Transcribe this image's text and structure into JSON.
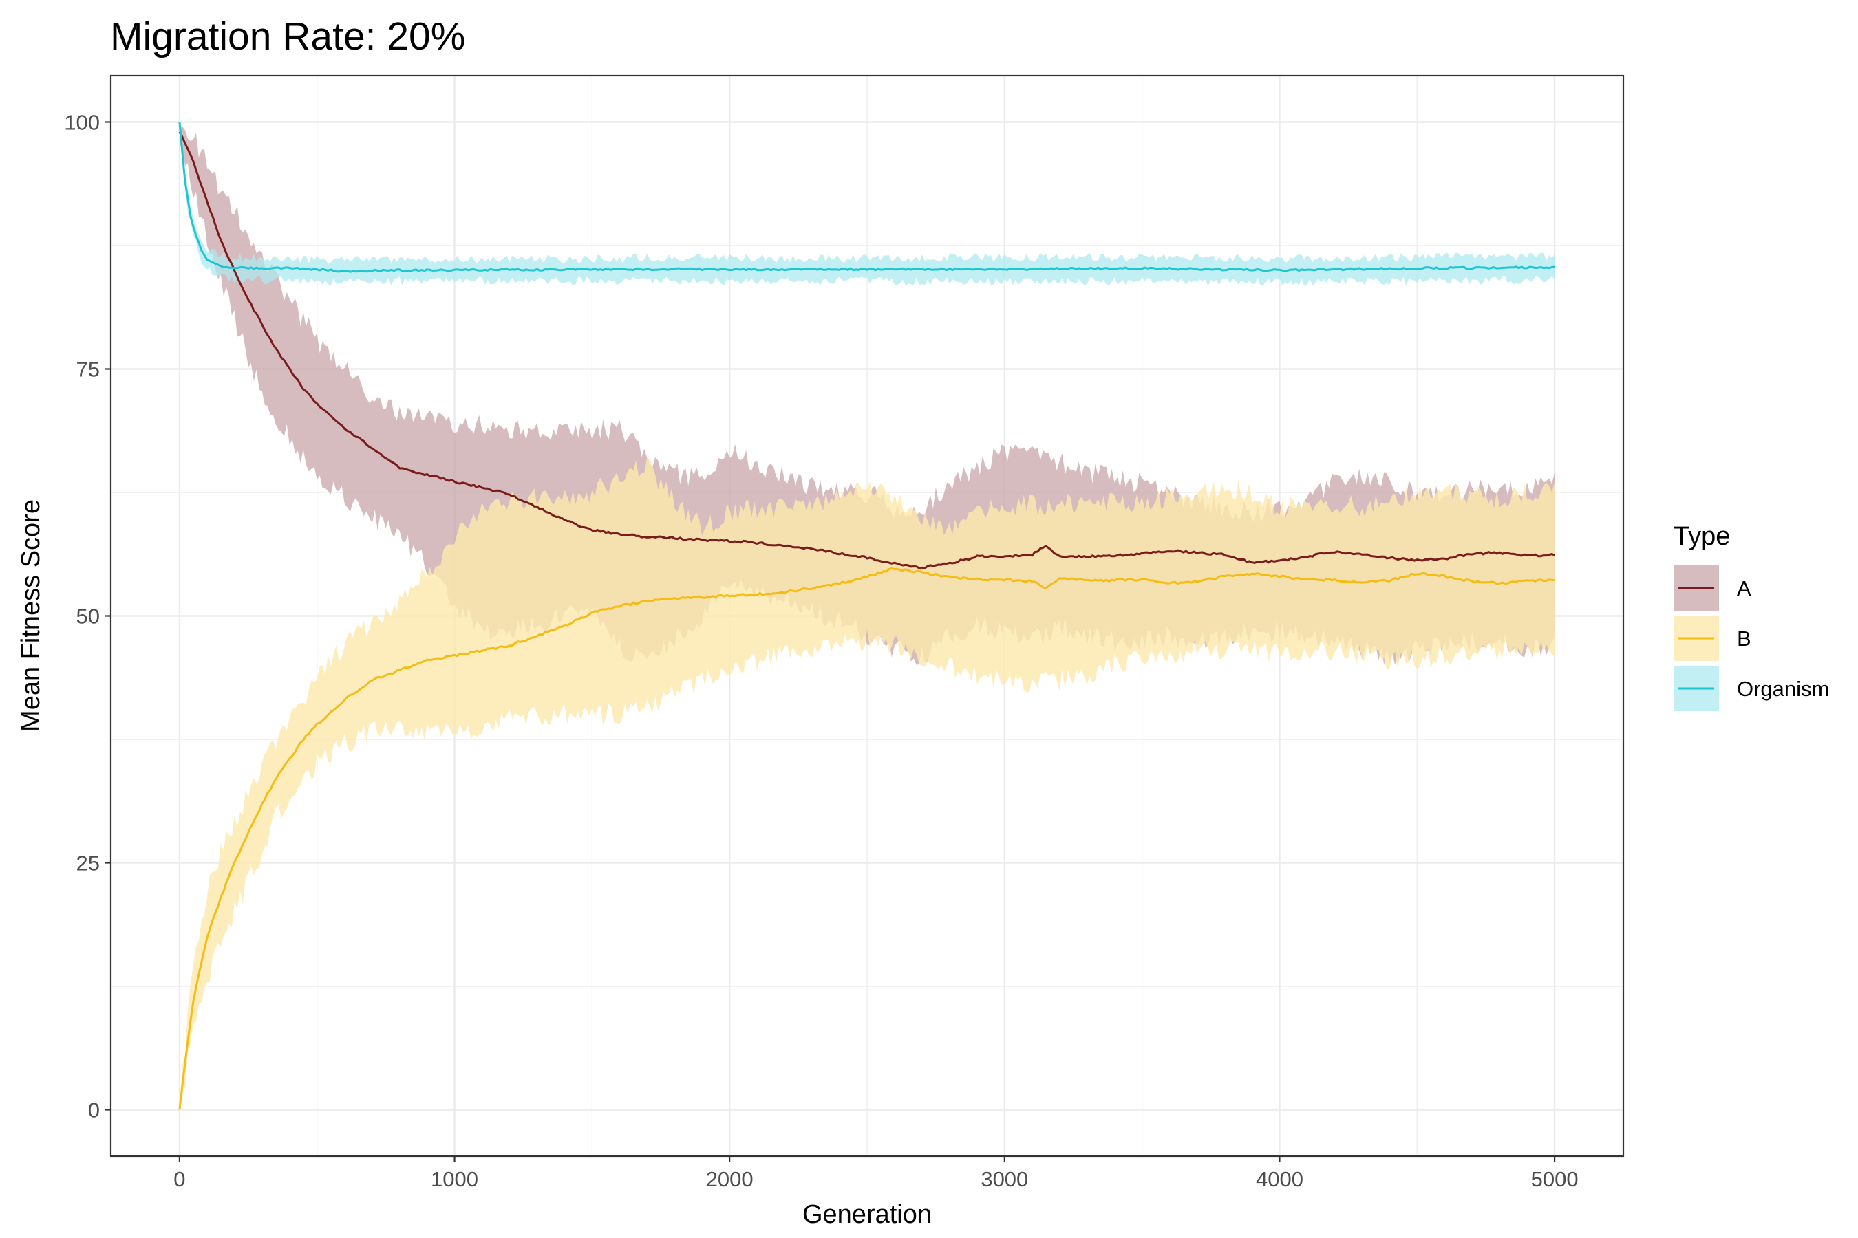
{
  "chart_data": {
    "type": "line",
    "title": "Migration Rate: 20%",
    "xlabel": "Generation",
    "ylabel": "Mean Fitness Score",
    "xlim": [
      -250,
      5250
    ],
    "ylim": [
      -4.7,
      104.7
    ],
    "x_ticks": [
      0,
      1000,
      2000,
      3000,
      4000,
      5000
    ],
    "y_ticks": [
      0,
      25,
      50,
      75,
      100
    ],
    "grid": true,
    "legend": {
      "title": "Type",
      "position": "right"
    },
    "series": [
      {
        "name": "A",
        "color": "#7b1c1c",
        "fill": "#c8a6aa",
        "x": [
          0,
          50,
          100,
          150,
          200,
          250,
          300,
          350,
          400,
          450,
          500,
          600,
          700,
          800,
          900,
          1000,
          1100,
          1200,
          1300,
          1400,
          1500,
          1600,
          1700,
          1800,
          1900,
          2000,
          2100,
          2200,
          2300,
          2400,
          2500,
          2600,
          2700,
          2800,
          2900,
          3000,
          3100,
          3150,
          3200,
          3300,
          3400,
          3500,
          3600,
          3700,
          3800,
          3900,
          4000,
          4100,
          4200,
          4300,
          4400,
          4500,
          4600,
          4700,
          4800,
          4900,
          5000
        ],
        "mean": [
          99,
          96,
          92,
          88,
          85,
          82,
          79.5,
          77,
          75,
          73,
          71.5,
          69,
          67,
          65,
          64.3,
          63.6,
          63,
          62.3,
          61,
          59.7,
          58.7,
          58.3,
          58,
          57.9,
          57.7,
          57.6,
          57.4,
          57.1,
          56.8,
          56.3,
          55.9,
          55.3,
          54.9,
          55.3,
          56,
          56,
          56.2,
          57.1,
          56,
          56,
          56.1,
          56.3,
          56.6,
          56.4,
          56.2,
          55.4,
          55.6,
          56,
          56.5,
          56.2,
          55.9,
          55.6,
          55.8,
          56.3,
          56.4,
          56.1,
          56.2
        ],
        "upper": [
          100,
          98.5,
          96,
          93,
          91,
          89,
          86.5,
          84,
          82,
          80,
          78,
          75,
          72,
          70.5,
          70,
          69.5,
          69.5,
          69,
          68.5,
          69,
          68.7,
          69,
          66,
          64.5,
          64,
          66.5,
          65.5,
          64,
          63,
          62.5,
          62.5,
          61,
          60.5,
          63.5,
          65,
          66.5,
          67,
          66.5,
          65.5,
          64.5,
          64,
          63.5,
          62.5,
          61.5,
          61,
          60.5,
          61,
          62,
          63.5,
          64,
          63.5,
          62.5,
          62,
          63,
          63,
          62.5,
          64
        ],
        "lower": [
          98,
          93,
          88,
          84,
          80,
          76,
          73,
          70,
          68,
          66,
          64,
          62,
          60,
          58,
          55,
          51,
          48.5,
          48.5,
          49,
          50,
          51,
          47,
          45,
          47.5,
          50,
          53,
          52,
          52,
          50.5,
          49.5,
          48,
          46.5,
          46,
          48,
          49,
          48.5,
          47.5,
          48,
          49,
          48,
          47.5,
          47.5,
          48,
          47.5,
          48,
          48.5,
          48.5,
          48,
          47.5,
          46.5,
          46,
          46.5,
          47,
          47.5,
          47.5,
          46.5,
          47
        ]
      },
      {
        "name": "B",
        "color": "#f5bd14",
        "fill": "#fde8ad",
        "x": [
          0,
          25,
          50,
          100,
          150,
          200,
          250,
          300,
          350,
          400,
          450,
          500,
          600,
          700,
          800,
          900,
          1000,
          1100,
          1200,
          1300,
          1400,
          1500,
          1600,
          1700,
          1800,
          1900,
          2000,
          2100,
          2200,
          2300,
          2400,
          2500,
          2600,
          2700,
          2800,
          2900,
          3000,
          3100,
          3150,
          3200,
          3300,
          3400,
          3500,
          3600,
          3700,
          3800,
          3900,
          4000,
          4100,
          4200,
          4300,
          4400,
          4500,
          4600,
          4700,
          4800,
          4900,
          5000
        ],
        "mean": [
          0,
          6,
          11,
          17.5,
          21.5,
          25,
          28,
          31,
          33.5,
          35.5,
          37.5,
          39,
          41.5,
          43.5,
          44.5,
          45.5,
          46,
          46.5,
          47,
          48,
          49,
          50.3,
          51,
          51.5,
          51.8,
          51.9,
          52.1,
          52.2,
          52.4,
          52.8,
          53.3,
          54,
          54.8,
          54.4,
          53.9,
          53.7,
          53.7,
          53.5,
          52.8,
          53.8,
          53.6,
          53.6,
          53.7,
          53.3,
          53.5,
          54,
          54.3,
          54,
          53.7,
          53.6,
          53.4,
          53.6,
          54.3,
          54,
          53.5,
          53.3,
          53.6,
          53.6
        ],
        "upper": [
          0.5,
          8,
          15,
          22,
          26,
          29,
          32,
          35,
          37,
          39.5,
          41.5,
          44,
          47,
          49.5,
          51.5,
          54.5,
          58,
          60.5,
          61.5,
          62,
          62,
          62.5,
          64,
          65.5,
          61.5,
          59,
          60.5,
          61,
          61,
          61.5,
          62,
          63,
          62,
          60,
          59,
          60.5,
          61,
          61.5,
          61,
          61.5,
          61,
          61.5,
          61.5,
          62,
          62.5,
          63,
          62.5,
          61,
          61,
          61.5,
          61,
          62,
          62.5,
          62.5,
          62,
          62,
          62.5,
          63
        ],
        "lower": [
          0,
          4,
          8,
          13,
          17,
          20,
          23,
          26,
          29.5,
          31.5,
          33,
          35,
          37,
          38.5,
          38.5,
          38.5,
          38,
          38.5,
          39.5,
          40,
          40,
          40,
          40,
          41,
          42,
          43.5,
          45,
          45.5,
          46,
          46.5,
          47,
          47.5,
          47,
          46,
          45,
          44,
          43.5,
          43,
          43.5,
          43.5,
          44,
          45,
          45.5,
          46,
          46.5,
          46.5,
          46.5,
          46,
          46.5,
          46.5,
          46,
          45.5,
          45.5,
          46,
          46.5,
          46.5,
          46.5,
          46.5
        ]
      },
      {
        "name": "Organism",
        "color": "#1ec6d1",
        "fill": "#aeeaef",
        "x": [
          0,
          20,
          40,
          60,
          80,
          100,
          130,
          160,
          200,
          300,
          400,
          500,
          600,
          800,
          1000,
          1500,
          2000,
          2500,
          3000,
          3500,
          4000,
          4500,
          5000
        ],
        "mean": [
          100,
          94,
          90.5,
          88.5,
          87,
          86,
          85.6,
          85.3,
          85.3,
          85.2,
          85.2,
          85.1,
          84.9,
          85,
          85,
          85.1,
          85.1,
          85.1,
          85.1,
          85.2,
          85,
          85.2,
          85.3
        ],
        "upper": [
          100,
          95,
          91.5,
          89.5,
          88,
          87,
          86.7,
          86.4,
          86.3,
          86.2,
          86.2,
          86.1,
          86,
          86.1,
          86.1,
          86.2,
          86.2,
          86.2,
          86.3,
          86.3,
          86.2,
          86.3,
          86.4
        ],
        "lower": [
          100,
          93,
          89.5,
          87.5,
          86,
          85,
          84.5,
          84.2,
          84.1,
          84,
          84,
          83.9,
          83.8,
          83.9,
          83.9,
          83.9,
          83.9,
          83.9,
          83.9,
          83.9,
          83.8,
          83.9,
          84
        ]
      }
    ]
  }
}
